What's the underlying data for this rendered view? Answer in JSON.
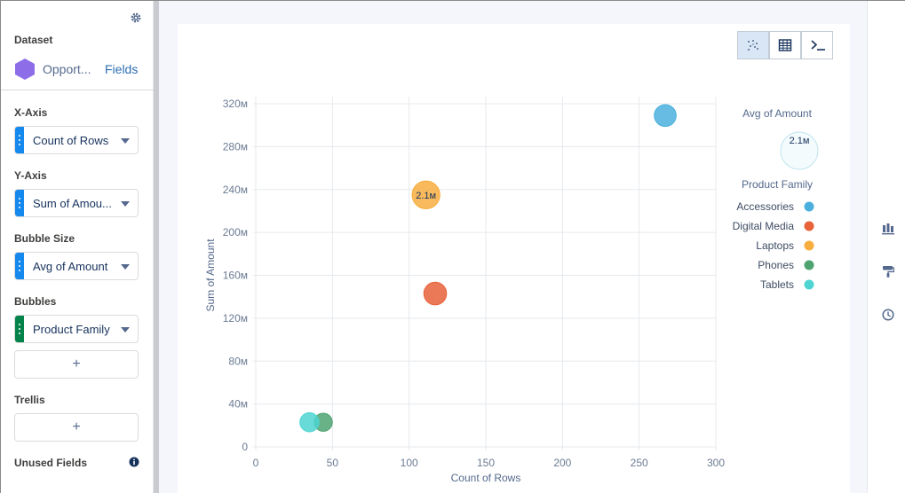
{
  "left_panel": {
    "dataset_label": "Dataset",
    "dataset_name": "Opport...",
    "fields_link": "Fields",
    "x_axis_label": "X-Axis",
    "x_axis_value": "Count of Rows",
    "y_axis_label": "Y-Axis",
    "y_axis_value": "Sum of Amou...",
    "bubble_size_label": "Bubble Size",
    "bubble_size_value": "Avg of Amount",
    "bubbles_label": "Bubbles",
    "bubbles_value": "Product Family",
    "add_symbol": "+",
    "trellis_label": "Trellis",
    "unused_fields_label": "Unused Fields"
  },
  "toolbar": {
    "buttons": [
      "chart-view-icon",
      "table-view-icon",
      "query-editor-icon"
    ],
    "active": "chart-view-icon"
  },
  "right_rail": {
    "icons": [
      "chart-type-icon",
      "format-paint-icon",
      "history-icon"
    ]
  },
  "colors": {
    "Accessories": "#4bb0dd",
    "Digital Media": "#e8623a",
    "Laptops": "#f7ae3f",
    "Phones": "#4fa371",
    "Tablets": "#4ed5d2"
  },
  "chart_data": {
    "type": "scatter",
    "subtype": "bubble",
    "xlabel": "Count of Rows",
    "ylabel": "Sum of Amount",
    "xlim": [
      0,
      300
    ],
    "ylim": [
      0,
      320000000
    ],
    "x_ticks": [
      "0",
      "50",
      "100",
      "150",
      "200",
      "250",
      "300"
    ],
    "y_ticks": [
      "0",
      "40м",
      "80м",
      "120м",
      "160м",
      "200м",
      "240м",
      "280м",
      "320м"
    ],
    "grid": true,
    "size_legend_title": "Avg of Amount",
    "size_legend_value": "2.1м",
    "legend_title": "Product Family",
    "legend_position": "right",
    "series": [
      {
        "name": "Accessories",
        "x": 267,
        "y": 309000000,
        "size": 1.3
      },
      {
        "name": "Digital Media",
        "x": 117,
        "y": 143000000,
        "size": 1.4
      },
      {
        "name": "Laptops",
        "x": 111,
        "y": 235000000,
        "size": 2.1,
        "label": "2.1м"
      },
      {
        "name": "Phones",
        "x": 44,
        "y": 23000000,
        "size": 0.9
      },
      {
        "name": "Tablets",
        "x": 35,
        "y": 23000000,
        "size": 1.0
      }
    ]
  }
}
